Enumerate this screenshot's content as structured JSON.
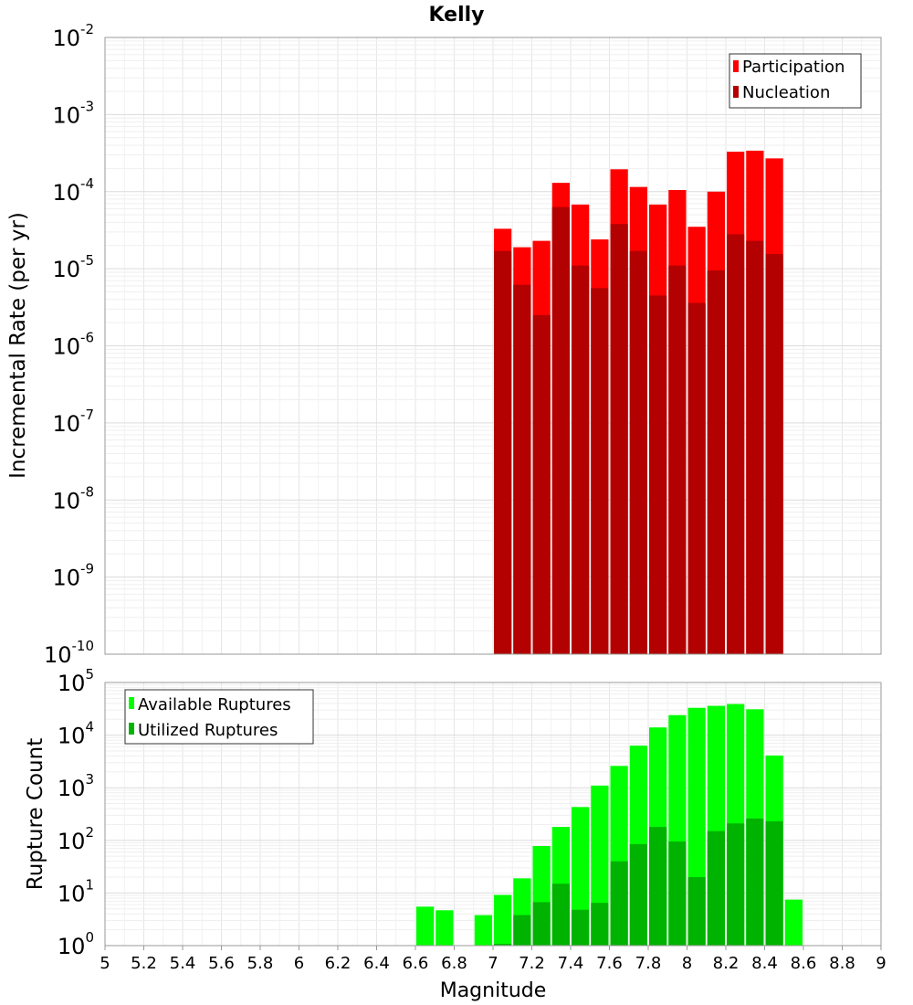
{
  "title": "Kelly",
  "chart_data": [
    {
      "type": "bar",
      "log_scale_y": true,
      "ylabel": "Incremental Rate (per yr)",
      "ylim": [
        1e-10,
        0.01
      ],
      "y_tick_exponents": [
        "-2",
        "-3",
        "-4",
        "-5",
        "-6",
        "-7",
        "-8",
        "-9",
        "-10"
      ],
      "y_tick_base": "10",
      "grid": true,
      "legend_position": "top-right",
      "series": [
        {
          "name": "Participation",
          "color": "#ff0000",
          "x": [
            7.05,
            7.15,
            7.25,
            7.35,
            7.45,
            7.55,
            7.65,
            7.75,
            7.85,
            7.95,
            8.05,
            8.15,
            8.25,
            8.35,
            8.45
          ],
          "values": [
            3.3e-05,
            1.9e-05,
            2.3e-05,
            0.00013,
            6.8e-05,
            2.4e-05,
            0.000195,
            0.000115,
            6.8e-05,
            0.000105,
            3.5e-05,
            0.0001,
            0.00033,
            0.00034,
            0.00027
          ]
        },
        {
          "name": "Nucleation",
          "color": "#b30000",
          "x": [
            7.05,
            7.15,
            7.25,
            7.35,
            7.45,
            7.55,
            7.65,
            7.75,
            7.85,
            7.95,
            8.05,
            8.15,
            8.25,
            8.35,
            8.45
          ],
          "values": [
            1.7e-05,
            6.2e-06,
            2.5e-06,
            6.3e-05,
            1.1e-05,
            5.6e-06,
            3.8e-05,
            1.7e-05,
            4.5e-06,
            1.1e-05,
            3.6e-06,
            9.5e-06,
            2.8e-05,
            2.3e-05,
            1.55e-05
          ]
        }
      ]
    },
    {
      "type": "bar",
      "log_scale_y": true,
      "ylabel": "Rupture Count",
      "xlabel": "Magnitude",
      "ylim": [
        1,
        100000
      ],
      "y_tick_exponents": [
        "5",
        "4",
        "3",
        "2",
        "1",
        "0"
      ],
      "y_tick_base": "10",
      "xlim": [
        5,
        9
      ],
      "x_ticks": [
        "5",
        "5.2",
        "5.4",
        "5.6",
        "5.8",
        "6",
        "6.2",
        "6.4",
        "6.6",
        "6.8",
        "7",
        "7.2",
        "7.4",
        "7.6",
        "7.8",
        "8",
        "8.2",
        "8.4",
        "8.6",
        "8.8",
        "9"
      ],
      "grid": true,
      "legend_position": "top-left",
      "series": [
        {
          "name": "Available Ruptures",
          "color": "#00ff00",
          "x": [
            6.65,
            6.75,
            6.95,
            7.05,
            7.15,
            7.25,
            7.35,
            7.45,
            7.55,
            7.65,
            7.75,
            7.85,
            7.95,
            8.05,
            8.15,
            8.25,
            8.35,
            8.45,
            8.55
          ],
          "values": [
            5.5,
            4.7,
            3.8,
            9.2,
            19,
            78,
            180,
            430,
            1100,
            2600,
            6300,
            14000,
            24000,
            33000,
            36000,
            39000,
            31000,
            4100,
            7.5
          ]
        },
        {
          "name": "Utilized Ruptures",
          "color": "#00b300",
          "x": [
            7.05,
            7.15,
            7.25,
            7.35,
            7.45,
            7.55,
            7.65,
            7.75,
            7.85,
            7.95,
            8.05,
            8.15,
            8.25,
            8.35,
            8.45
          ],
          "values": [
            1.08,
            3.8,
            6.7,
            15,
            4.8,
            6.5,
            40,
            85,
            180,
            95,
            20,
            150,
            210,
            260,
            230
          ]
        }
      ]
    }
  ]
}
